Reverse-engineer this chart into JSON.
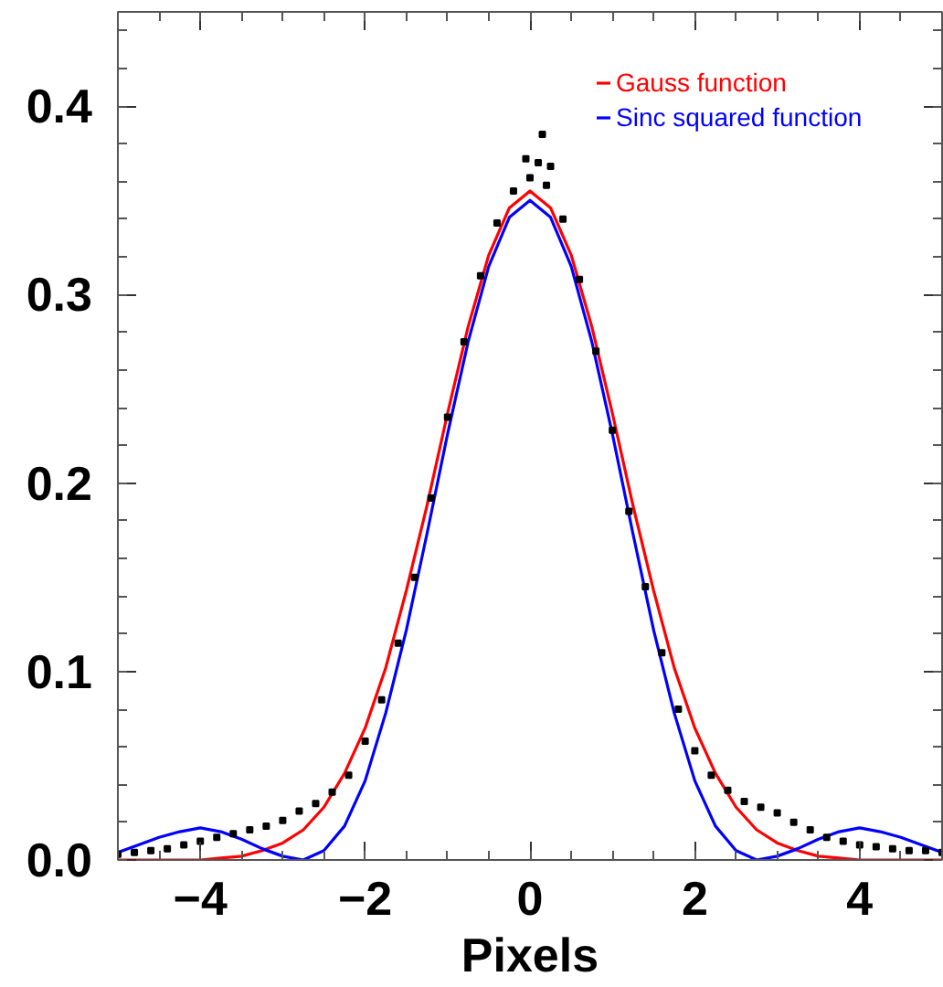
{
  "chart_data": {
    "type": "line",
    "xlabel": "Pixels",
    "xlim": [
      -5,
      5
    ],
    "ylim": [
      0,
      0.45
    ],
    "xticks": [
      -4,
      -2,
      0,
      2,
      4
    ],
    "yticks": [
      {
        "value": 0,
        "label": "0.0"
      },
      0.1,
      0.2,
      0.3,
      0.4
    ],
    "legend": "top right",
    "series": [
      {
        "type": "scatter",
        "marker": "square",
        "color": "#000000",
        "x": [
          -5,
          -4.8,
          -4.6,
          -4.4,
          -4.2,
          -4,
          -3.8,
          -3.6,
          -3.4,
          -3.2,
          -3,
          -2.8,
          -2.6,
          -2.4,
          -2.2,
          -2,
          -1.8,
          -1.6,
          -1.4,
          -1.2,
          -1,
          -0.8,
          -0.6,
          -0.4,
          -0.2,
          0,
          0.2,
          0.4,
          0.6,
          0.8,
          1,
          1.2,
          1.4,
          1.6,
          1.8,
          2,
          2.2,
          2.4,
          2.6,
          2.8,
          3,
          3.2,
          3.4,
          3.6,
          3.8,
          4,
          4.2,
          4.4,
          4.6,
          4.8,
          5,
          -0.05,
          0.1,
          0.15,
          0.25
        ],
        "values": [
          0.003,
          0.004,
          0.005,
          0.006,
          0.008,
          0.01,
          0.012,
          0.014,
          0.016,
          0.018,
          0.021,
          0.026,
          0.03,
          0.036,
          0.045,
          0.063,
          0.085,
          0.115,
          0.15,
          0.192,
          0.235,
          0.275,
          0.31,
          0.338,
          0.355,
          0.362,
          0.358,
          0.34,
          0.308,
          0.27,
          0.228,
          0.185,
          0.145,
          0.11,
          0.08,
          0.058,
          0.045,
          0.037,
          0.031,
          0.028,
          0.025,
          0.02,
          0.016,
          0.012,
          0.01,
          0.008,
          0.007,
          0.006,
          0.005,
          0.005,
          0.004,
          0.372,
          0.37,
          0.385,
          0.368
        ]
      },
      {
        "name": "Gauss function",
        "color": "#ff0000",
        "x": [
          -5,
          -4.75,
          -4.5,
          -4.25,
          -4,
          -3.75,
          -3.5,
          -3.25,
          -3,
          -2.75,
          -2.5,
          -2.25,
          -2,
          -1.75,
          -1.5,
          -1.25,
          -1,
          -0.75,
          -0.5,
          -0.25,
          0,
          0.25,
          0.5,
          0.75,
          1,
          1.25,
          1.5,
          1.75,
          2,
          2.25,
          2.5,
          2.75,
          3,
          3.25,
          3.5,
          3.75,
          4,
          4.25,
          4.5,
          4.75,
          5
        ],
        "values": [
          0,
          0,
          0,
          0,
          0,
          0.001,
          0.002,
          0.005,
          0.009,
          0.016,
          0.028,
          0.046,
          0.07,
          0.102,
          0.143,
          0.188,
          0.237,
          0.283,
          0.321,
          0.346,
          0.355,
          0.346,
          0.321,
          0.283,
          0.237,
          0.188,
          0.143,
          0.102,
          0.07,
          0.046,
          0.028,
          0.016,
          0.009,
          0.005,
          0.002,
          0.001,
          0,
          0,
          0,
          0,
          0
        ]
      },
      {
        "name": "Sinc squared function",
        "color": "#0000ff",
        "x": [
          -5,
          -4.75,
          -4.5,
          -4.25,
          -4,
          -3.75,
          -3.5,
          -3.25,
          -3,
          -2.75,
          -2.5,
          -2.25,
          -2,
          -1.75,
          -1.5,
          -1.25,
          -1,
          -0.75,
          -0.5,
          -0.25,
          0,
          0.25,
          0.5,
          0.75,
          1,
          1.25,
          1.5,
          1.75,
          2,
          2.25,
          2.5,
          2.75,
          3,
          3.25,
          3.5,
          3.75,
          4,
          4.25,
          4.5,
          4.75,
          5
        ],
        "values": [
          0.004,
          0.008,
          0.012,
          0.015,
          0.017,
          0.015,
          0.011,
          0.006,
          0.002,
          0,
          0.005,
          0.018,
          0.042,
          0.078,
          0.122,
          0.173,
          0.226,
          0.275,
          0.315,
          0.341,
          0.35,
          0.341,
          0.315,
          0.275,
          0.226,
          0.173,
          0.122,
          0.078,
          0.042,
          0.018,
          0.005,
          0,
          0.002,
          0.006,
          0.011,
          0.015,
          0.017,
          0.015,
          0.012,
          0.008,
          0.004
        ]
      }
    ]
  }
}
